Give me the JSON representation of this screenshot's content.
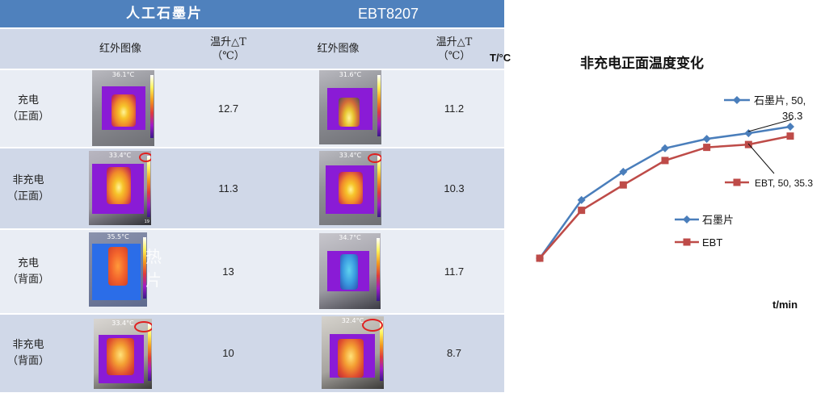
{
  "table": {
    "header": {
      "col1": "人工石墨片",
      "col2": "EBT8207"
    },
    "subheader": {
      "col1_img": "红外图像",
      "col1_rise": "温升△T\n（℃）",
      "col2_img": "红外图像",
      "col2_rise": "温升△T\n（℃）"
    },
    "rows": [
      {
        "label": "充电\n（正面）",
        "graphite_temp": "36.1°C",
        "graphite_rise": "12.7",
        "ebt_temp": "31.6°C",
        "ebt_rise": "11.2"
      },
      {
        "label": "非充电\n（正面）",
        "graphite_temp": "33.4°C",
        "graphite_rise": "11.3",
        "ebt_temp": "33.4°C",
        "ebt_rise": "10.3"
      },
      {
        "label": "充电\n（背面）",
        "graphite_temp": "35.5°C",
        "graphite_rise": "13",
        "ebt_temp": "34.7°C",
        "ebt_rise": "11.7"
      },
      {
        "label": "非充电\n（背面）",
        "graphite_temp": "33.4°C",
        "graphite_rise": "10",
        "ebt_temp": "32.4°C",
        "ebt_rise": "8.7"
      }
    ],
    "ghost_text": "热片",
    "ghost_text_2": "19"
  },
  "chart_data": {
    "type": "line",
    "title": "非充电正面温度变化",
    "ylabel": "T/°C",
    "xlabel": "t/min",
    "series": [
      {
        "name": "石墨片",
        "color": "#4a7ebb",
        "marker": "diamond",
        "x": [
          0,
          5,
          10,
          20,
          30,
          40,
          50
        ],
        "y": [
          22.3,
          28.5,
          31.5,
          34.0,
          35.0,
          35.6,
          36.3
        ]
      },
      {
        "name": "EBT",
        "color": "#be4b48",
        "marker": "square",
        "x": [
          0,
          5,
          10,
          20,
          30,
          40,
          50
        ],
        "y": [
          22.3,
          27.4,
          30.1,
          32.7,
          34.1,
          34.4,
          35.3
        ]
      }
    ],
    "annotations": [
      {
        "text": "石墨片, 50,",
        "text2": "36.3",
        "series": 0
      },
      {
        "text": "EBT, 50, 35.3",
        "series": 1
      }
    ],
    "legend_position": "center-right"
  }
}
